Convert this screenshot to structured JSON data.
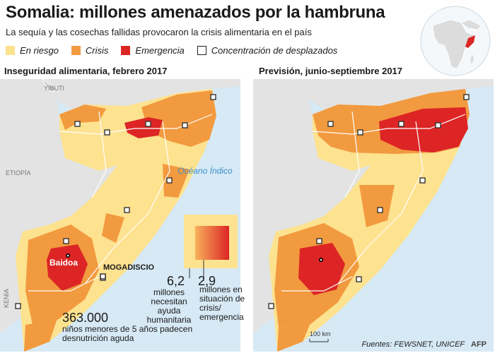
{
  "title": "Somalia: millones amenazados por la hambruna",
  "subtitle": "La sequía y las cosechas fallidas provocaron la crisis alimentaria en el país",
  "legend": [
    {
      "label": "En riesgo",
      "color": "#fde28f"
    },
    {
      "label": "Crisis",
      "color": "#f29a3f"
    },
    {
      "label": "Emergencia",
      "color": "#dd2525"
    },
    {
      "label": "Concentración de desplazados",
      "color": "#ffffff"
    }
  ],
  "colors": {
    "sea": "#d6e9f5",
    "neighbors": "#e3e3e3",
    "border": "#ffffff"
  },
  "panels": {
    "left": {
      "title": "Inseguridad alimentaria, febrero 2017",
      "labels": {
        "djibouti": "YIBUTI",
        "ethiopia": "ETIOPÍA",
        "kenya": "KENIA",
        "ocean": "Océano Índico",
        "baidoa": "Baidoa",
        "mogadishu": "MOGADISCIO"
      }
    },
    "right": {
      "title": "Previsión, junio-septiembre 2017",
      "scale": "100 km"
    }
  },
  "stats": {
    "humanitarian": {
      "number": "6,2",
      "text": "millones necesitan ayuda humanitaria"
    },
    "crisis": {
      "number": "2,9",
      "text": "millones en situación de crisis/ emergencia"
    },
    "children": {
      "number": "363.000",
      "text": "niños menores de 5 años padecen desnutrición aguda"
    }
  },
  "credit": "Fuentes: FEWSNET, UNICEF",
  "agency": "AFP"
}
